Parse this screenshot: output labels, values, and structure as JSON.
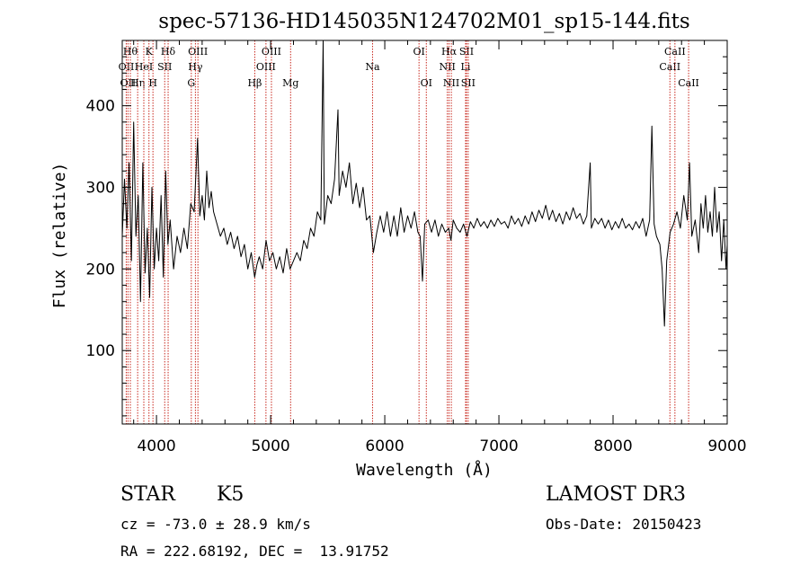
{
  "chart_data": {
    "type": "line",
    "title": "spec-57136-HD145035N124702M01_sp15-144.fits",
    "xlabel": "Wavelength (Å)",
    "ylabel": "Flux (relative)",
    "xlim": [
      3700,
      9000
    ],
    "ylim": [
      10,
      480
    ],
    "x_ticks": [
      4000,
      5000,
      6000,
      7000,
      8000,
      9000
    ],
    "y_ticks": [
      100,
      200,
      300,
      400
    ],
    "grid": false,
    "series": [
      {
        "color": "#000000",
        "points": [
          [
            3700,
            240
          ],
          [
            3720,
            310
          ],
          [
            3740,
            250
          ],
          [
            3760,
            330
          ],
          [
            3780,
            210
          ],
          [
            3800,
            380
          ],
          [
            3820,
            240
          ],
          [
            3840,
            290
          ],
          [
            3860,
            160
          ],
          [
            3880,
            330
          ],
          [
            3900,
            195
          ],
          [
            3920,
            250
          ],
          [
            3940,
            165
          ],
          [
            3960,
            300
          ],
          [
            3980,
            200
          ],
          [
            4000,
            250
          ],
          [
            4020,
            210
          ],
          [
            4040,
            290
          ],
          [
            4060,
            190
          ],
          [
            4080,
            320
          ],
          [
            4100,
            230
          ],
          [
            4120,
            260
          ],
          [
            4150,
            200
          ],
          [
            4180,
            240
          ],
          [
            4210,
            220
          ],
          [
            4240,
            250
          ],
          [
            4270,
            225
          ],
          [
            4300,
            280
          ],
          [
            4330,
            270
          ],
          [
            4360,
            360
          ],
          [
            4380,
            265
          ],
          [
            4400,
            290
          ],
          [
            4420,
            260
          ],
          [
            4440,
            320
          ],
          [
            4460,
            275
          ],
          [
            4480,
            295
          ],
          [
            4500,
            270
          ],
          [
            4530,
            255
          ],
          [
            4560,
            240
          ],
          [
            4590,
            250
          ],
          [
            4620,
            230
          ],
          [
            4650,
            245
          ],
          [
            4680,
            225
          ],
          [
            4710,
            240
          ],
          [
            4740,
            215
          ],
          [
            4770,
            230
          ],
          [
            4800,
            200
          ],
          [
            4830,
            220
          ],
          [
            4860,
            190
          ],
          [
            4880,
            205
          ],
          [
            4900,
            215
          ],
          [
            4930,
            200
          ],
          [
            4960,
            235
          ],
          [
            4990,
            210
          ],
          [
            5020,
            220
          ],
          [
            5050,
            200
          ],
          [
            5080,
            215
          ],
          [
            5110,
            195
          ],
          [
            5140,
            225
          ],
          [
            5170,
            200
          ],
          [
            5200,
            210
          ],
          [
            5230,
            220
          ],
          [
            5260,
            210
          ],
          [
            5290,
            235
          ],
          [
            5320,
            225
          ],
          [
            5350,
            250
          ],
          [
            5380,
            240
          ],
          [
            5410,
            270
          ],
          [
            5440,
            260
          ],
          [
            5460,
            480
          ],
          [
            5470,
            255
          ],
          [
            5500,
            290
          ],
          [
            5530,
            280
          ],
          [
            5560,
            310
          ],
          [
            5590,
            395
          ],
          [
            5600,
            290
          ],
          [
            5630,
            320
          ],
          [
            5660,
            300
          ],
          [
            5690,
            330
          ],
          [
            5720,
            280
          ],
          [
            5750,
            305
          ],
          [
            5780,
            275
          ],
          [
            5810,
            300
          ],
          [
            5840,
            260
          ],
          [
            5870,
            265
          ],
          [
            5900,
            220
          ],
          [
            5930,
            245
          ],
          [
            5960,
            265
          ],
          [
            5990,
            245
          ],
          [
            6020,
            270
          ],
          [
            6050,
            240
          ],
          [
            6080,
            265
          ],
          [
            6110,
            240
          ],
          [
            6140,
            275
          ],
          [
            6170,
            245
          ],
          [
            6200,
            265
          ],
          [
            6230,
            250
          ],
          [
            6260,
            270
          ],
          [
            6290,
            245
          ],
          [
            6310,
            240
          ],
          [
            6330,
            185
          ],
          [
            6350,
            255
          ],
          [
            6380,
            260
          ],
          [
            6410,
            245
          ],
          [
            6440,
            260
          ],
          [
            6470,
            240
          ],
          [
            6500,
            255
          ],
          [
            6530,
            245
          ],
          [
            6560,
            250
          ],
          [
            6580,
            235
          ],
          [
            6600,
            260
          ],
          [
            6630,
            250
          ],
          [
            6660,
            245
          ],
          [
            6690,
            255
          ],
          [
            6720,
            240
          ],
          [
            6750,
            258
          ],
          [
            6780,
            250
          ],
          [
            6810,
            262
          ],
          [
            6840,
            252
          ],
          [
            6870,
            258
          ],
          [
            6900,
            250
          ],
          [
            6930,
            260
          ],
          [
            6960,
            252
          ],
          [
            6990,
            262
          ],
          [
            7020,
            255
          ],
          [
            7050,
            258
          ],
          [
            7080,
            250
          ],
          [
            7110,
            265
          ],
          [
            7140,
            255
          ],
          [
            7170,
            262
          ],
          [
            7200,
            252
          ],
          [
            7230,
            265
          ],
          [
            7260,
            255
          ],
          [
            7290,
            270
          ],
          [
            7320,
            258
          ],
          [
            7350,
            272
          ],
          [
            7380,
            262
          ],
          [
            7410,
            278
          ],
          [
            7440,
            260
          ],
          [
            7470,
            272
          ],
          [
            7500,
            258
          ],
          [
            7530,
            268
          ],
          [
            7560,
            255
          ],
          [
            7590,
            270
          ],
          [
            7620,
            260
          ],
          [
            7650,
            275
          ],
          [
            7680,
            262
          ],
          [
            7710,
            268
          ],
          [
            7740,
            255
          ],
          [
            7770,
            265
          ],
          [
            7800,
            330
          ],
          [
            7810,
            250
          ],
          [
            7840,
            262
          ],
          [
            7870,
            255
          ],
          [
            7900,
            262
          ],
          [
            7930,
            250
          ],
          [
            7960,
            260
          ],
          [
            7990,
            248
          ],
          [
            8020,
            258
          ],
          [
            8050,
            250
          ],
          [
            8080,
            262
          ],
          [
            8110,
            250
          ],
          [
            8140,
            255
          ],
          [
            8170,
            248
          ],
          [
            8200,
            258
          ],
          [
            8230,
            250
          ],
          [
            8260,
            262
          ],
          [
            8290,
            240
          ],
          [
            8320,
            260
          ],
          [
            8340,
            375
          ],
          [
            8360,
            255
          ],
          [
            8380,
            240
          ],
          [
            8410,
            230
          ],
          [
            8430,
            200
          ],
          [
            8450,
            130
          ],
          [
            8470,
            210
          ],
          [
            8500,
            245
          ],
          [
            8530,
            255
          ],
          [
            8560,
            270
          ],
          [
            8590,
            250
          ],
          [
            8620,
            290
          ],
          [
            8650,
            260
          ],
          [
            8670,
            330
          ],
          [
            8690,
            240
          ],
          [
            8720,
            260
          ],
          [
            8750,
            220
          ],
          [
            8770,
            280
          ],
          [
            8790,
            250
          ],
          [
            8810,
            290
          ],
          [
            8830,
            245
          ],
          [
            8850,
            270
          ],
          [
            8870,
            240
          ],
          [
            8890,
            300
          ],
          [
            8910,
            245
          ],
          [
            8930,
            270
          ],
          [
            8950,
            210
          ],
          [
            8970,
            260
          ],
          [
            8990,
            200
          ],
          [
            9000,
            230
          ]
        ]
      }
    ],
    "line_markers": [
      {
        "x": 3735,
        "label": "OII",
        "row": 2
      },
      {
        "x": 3750,
        "label": "OII",
        "row": 3
      },
      {
        "x": 3771,
        "label": "Hθ",
        "row": 1
      },
      {
        "x": 3835,
        "label": "Hη",
        "row": 3
      },
      {
        "x": 3889,
        "label": "HeI",
        "row": 2
      },
      {
        "x": 3934,
        "label": "K",
        "row": 1
      },
      {
        "x": 3969,
        "label": "H",
        "row": 3
      },
      {
        "x": 4072,
        "label": "SII",
        "row": 2
      },
      {
        "x": 4102,
        "label": "Hδ",
        "row": 1
      },
      {
        "x": 4305,
        "label": "G",
        "row": 3
      },
      {
        "x": 4341,
        "label": "Hγ",
        "row": 2
      },
      {
        "x": 4363,
        "label": "OIII",
        "row": 1
      },
      {
        "x": 4861,
        "label": "Hβ",
        "row": 3
      },
      {
        "x": 4959,
        "label": "OIII",
        "row": 2
      },
      {
        "x": 5007,
        "label": "OIII",
        "row": 1
      },
      {
        "x": 5175,
        "label": "Mg",
        "row": 3
      },
      {
        "x": 5893,
        "label": "Na",
        "row": 2
      },
      {
        "x": 6300,
        "label": "OI",
        "row": 1
      },
      {
        "x": 6364,
        "label": "OI",
        "row": 3
      },
      {
        "x": 6548,
        "label": "NII",
        "row": 2
      },
      {
        "x": 6563,
        "label": "Hα",
        "row": 1
      },
      {
        "x": 6583,
        "label": "NII",
        "row": 3
      },
      {
        "x": 6708,
        "label": "Li",
        "row": 2
      },
      {
        "x": 6716,
        "label": "SII",
        "row": 1
      },
      {
        "x": 6731,
        "label": "SII",
        "row": 3
      },
      {
        "x": 8498,
        "label": "CaII",
        "row": 2
      },
      {
        "x": 8542,
        "label": "CaII",
        "row": 1
      },
      {
        "x": 8662,
        "label": "CaII",
        "row": 3
      }
    ],
    "marker_color": "#c8281e"
  },
  "info": {
    "object_class": "STAR",
    "subclass": "K5",
    "survey": "LAMOST DR3",
    "redshift": "cz = -73.0 ± 28.9 km/s",
    "obs_date": "Obs-Date: 20150423",
    "coords": "RA = 222.68192, DEC =  13.91752"
  }
}
